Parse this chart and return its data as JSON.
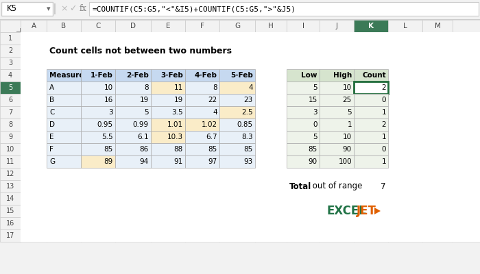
{
  "title": "Count cells not between two numbers",
  "formula_bar_cell": "K5",
  "formula_bar_text": "=COUNTIF(C5:G5,\"<\"&I5)+COUNTIF(C5:G5,\">\"&J5)",
  "left_table": {
    "headers": [
      "Measure",
      "1-Feb",
      "2-Feb",
      "3-Feb",
      "4-Feb",
      "5-Feb"
    ],
    "rows": [
      [
        "A",
        "10",
        "8",
        "11",
        "8",
        "4"
      ],
      [
        "B",
        "16",
        "19",
        "19",
        "22",
        "23"
      ],
      [
        "C",
        "3",
        "5",
        "3.5",
        "4",
        "2.5"
      ],
      [
        "D",
        "0.95",
        "0.99",
        "1.01",
        "1.02",
        "0.85"
      ],
      [
        "E",
        "5.5",
        "6.1",
        "10.3",
        "6.7",
        "8.3"
      ],
      [
        "F",
        "85",
        "86",
        "88",
        "85",
        "85"
      ],
      [
        "G",
        "89",
        "94",
        "91",
        "97",
        "93"
      ]
    ],
    "highlighted_cells": [
      [
        0,
        3,
        "#FAECC8"
      ],
      [
        0,
        5,
        "#FAECC8"
      ],
      [
        2,
        5,
        "#FAECC8"
      ],
      [
        3,
        3,
        "#FAECC8"
      ],
      [
        3,
        4,
        "#FAECC8"
      ],
      [
        4,
        3,
        "#FAECC8"
      ],
      [
        6,
        1,
        "#FAECC8"
      ]
    ]
  },
  "right_table": {
    "headers": [
      "Low",
      "High",
      "Count"
    ],
    "rows": [
      [
        "5",
        "10",
        "2"
      ],
      [
        "15",
        "25",
        "0"
      ],
      [
        "3",
        "5",
        "1"
      ],
      [
        "0",
        "1",
        "2"
      ],
      [
        "5",
        "10",
        "1"
      ],
      [
        "85",
        "90",
        "0"
      ],
      [
        "90",
        "100",
        "1"
      ]
    ],
    "count_col_selected_row": 0
  },
  "total_label_bold": "Total",
  "total_label_normal": " out of range",
  "total_value": "7",
  "header_bg": "#C6D9F0",
  "right_header_bg": "#D6E4CE",
  "cell_bg": "#E8F0F8",
  "right_cell_bg": "#EEF3EA",
  "count_selected_bg": "#FFFFFF",
  "count_selected_border": "#1F6B3A",
  "col_header_selected_bg": "#3B7A57",
  "row_header_selected_bg": "#3B7A57",
  "logo_color_excel": "#217346",
  "logo_color_jet": "#E06000"
}
